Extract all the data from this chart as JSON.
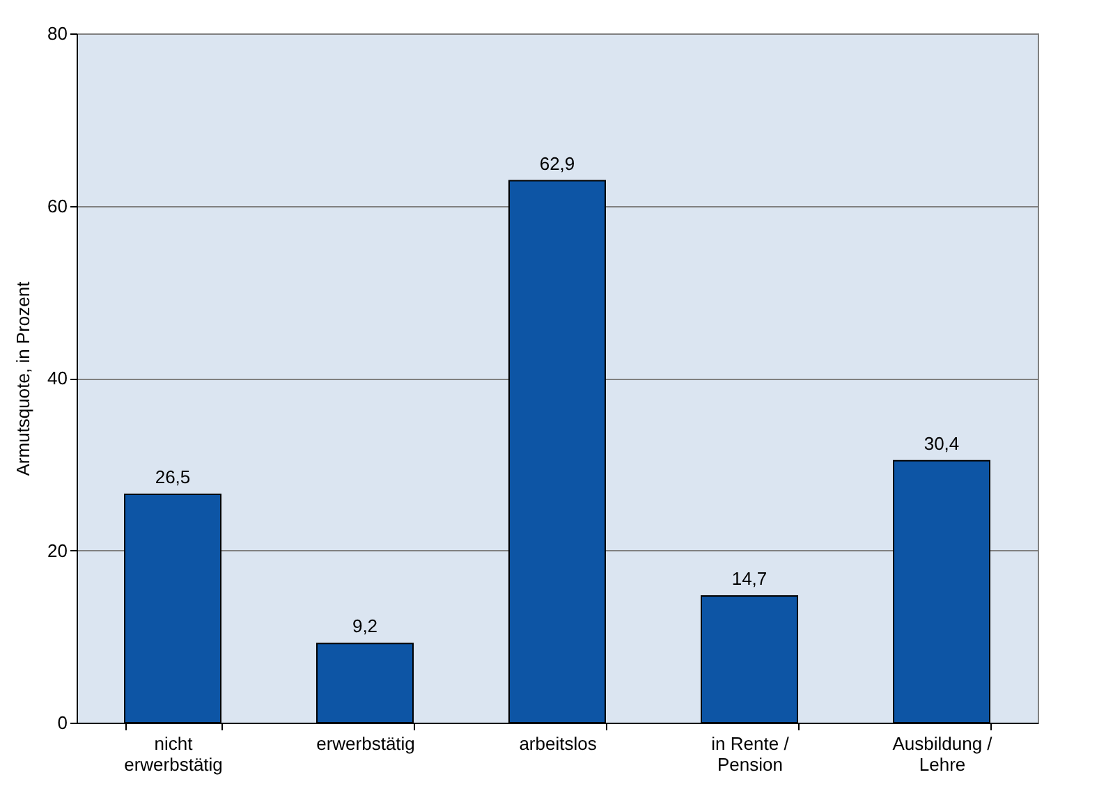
{
  "chart_data": {
    "type": "bar",
    "ylabel": "Armutsquote, in Prozent",
    "categories": [
      "nicht\nerwerbstätig",
      "erwerbstätig",
      "arbeitslos",
      "in Rente /\nPension",
      "Ausbildung /\nLehre"
    ],
    "values": [
      26.5,
      9.2,
      62.9,
      14.7,
      30.4
    ],
    "value_labels": [
      "26,5",
      "9,2",
      "62,9",
      "14,7",
      "30,4"
    ],
    "color": "#0d55a5",
    "ylim": [
      0,
      80
    ],
    "yticks": [
      0,
      20,
      40,
      60,
      80
    ],
    "grid": "y"
  }
}
